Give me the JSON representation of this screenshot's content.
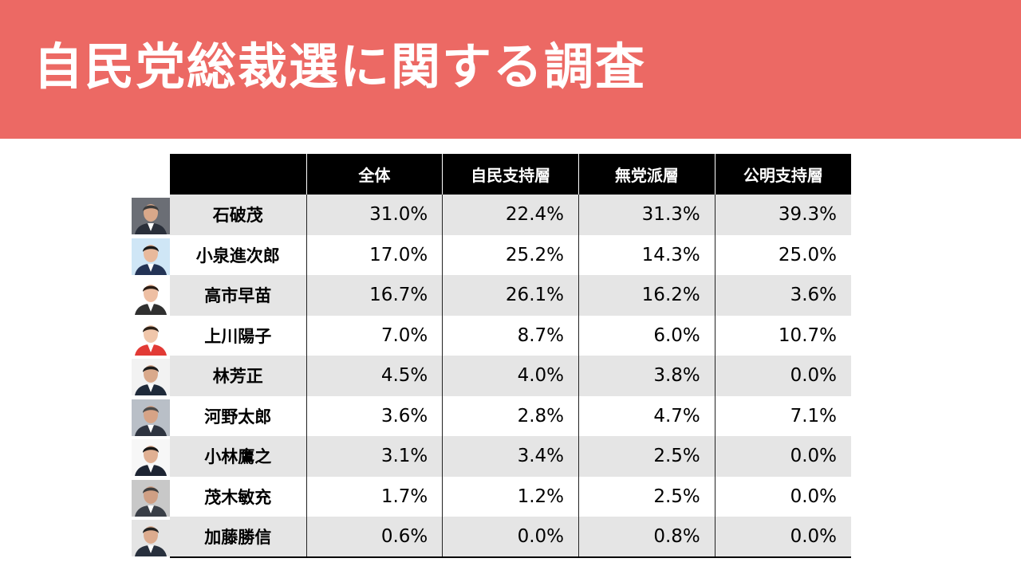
{
  "page": {
    "title": "自民党総裁選に関する調査",
    "accent_color": "#ec6964"
  },
  "table": {
    "headers": [
      "",
      "全体",
      "自民支持層",
      "無党派層",
      "公明支持層"
    ],
    "rows": [
      {
        "name": "石破茂",
        "photo_icon": "portrait-icon",
        "values": [
          "31.0%",
          "22.4%",
          "31.3%",
          "39.3%"
        ]
      },
      {
        "name": "小泉進次郎",
        "photo_icon": "portrait-icon",
        "values": [
          "17.0%",
          "25.2%",
          "14.3%",
          "25.0%"
        ]
      },
      {
        "name": "高市早苗",
        "photo_icon": "portrait-icon",
        "values": [
          "16.7%",
          "26.1%",
          "16.2%",
          "3.6%"
        ]
      },
      {
        "name": "上川陽子",
        "photo_icon": "portrait-icon",
        "values": [
          "7.0%",
          "8.7%",
          "6.0%",
          "10.7%"
        ]
      },
      {
        "name": "林芳正",
        "photo_icon": "portrait-icon",
        "values": [
          "4.5%",
          "4.0%",
          "3.8%",
          "0.0%"
        ]
      },
      {
        "name": "河野太郎",
        "photo_icon": "portrait-icon",
        "values": [
          "3.6%",
          "2.8%",
          "4.7%",
          "7.1%"
        ]
      },
      {
        "name": "小林鷹之",
        "photo_icon": "portrait-icon",
        "values": [
          "3.1%",
          "3.4%",
          "2.5%",
          "0.0%"
        ]
      },
      {
        "name": "茂木敏充",
        "photo_icon": "portrait-icon",
        "values": [
          "1.7%",
          "1.2%",
          "2.5%",
          "0.0%"
        ]
      },
      {
        "name": "加藤勝信",
        "photo_icon": "portrait-icon",
        "values": [
          "0.6%",
          "0.0%",
          "0.8%",
          "0.0%"
        ]
      }
    ]
  }
}
